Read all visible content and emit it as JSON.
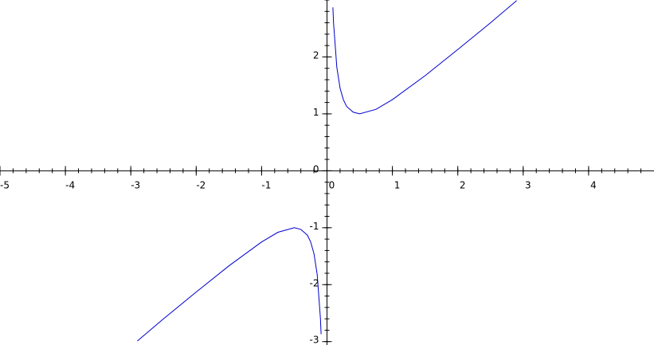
{
  "chart_data": {
    "type": "line",
    "x": [
      -2.9,
      -2.5,
      -2,
      -1.5,
      -1,
      -0.75,
      -0.5,
      -0.4,
      -0.3,
      -0.25,
      -0.2,
      -0.15,
      -0.1,
      -0.09,
      0,
      0.09,
      0.1,
      0.15,
      0.2,
      0.25,
      0.3,
      0.4,
      0.5,
      0.75,
      1,
      1.5,
      2,
      2.5,
      2.9
    ],
    "series": [
      {
        "color": "#0000cc",
        "values": [
          -2.99,
          -2.6,
          -2.13,
          -1.67,
          -1.25,
          -1.08,
          -1.0,
          -1.03,
          -1.13,
          -1.25,
          -1.45,
          -1.82,
          -2.6,
          -2.87,
          null,
          2.87,
          2.6,
          1.82,
          1.45,
          1.25,
          1.13,
          1.03,
          1.0,
          1.08,
          1.25,
          1.67,
          2.13,
          2.6,
          2.99
        ]
      }
    ],
    "xlim": [
      -5,
      5
    ],
    "ylim": [
      -3.06,
      3
    ],
    "xticks": [
      -5,
      -4,
      -3,
      -2,
      -1,
      0,
      1,
      2,
      3,
      4
    ],
    "yticks": [
      -3,
      -2,
      -1,
      0,
      1,
      2
    ]
  }
}
